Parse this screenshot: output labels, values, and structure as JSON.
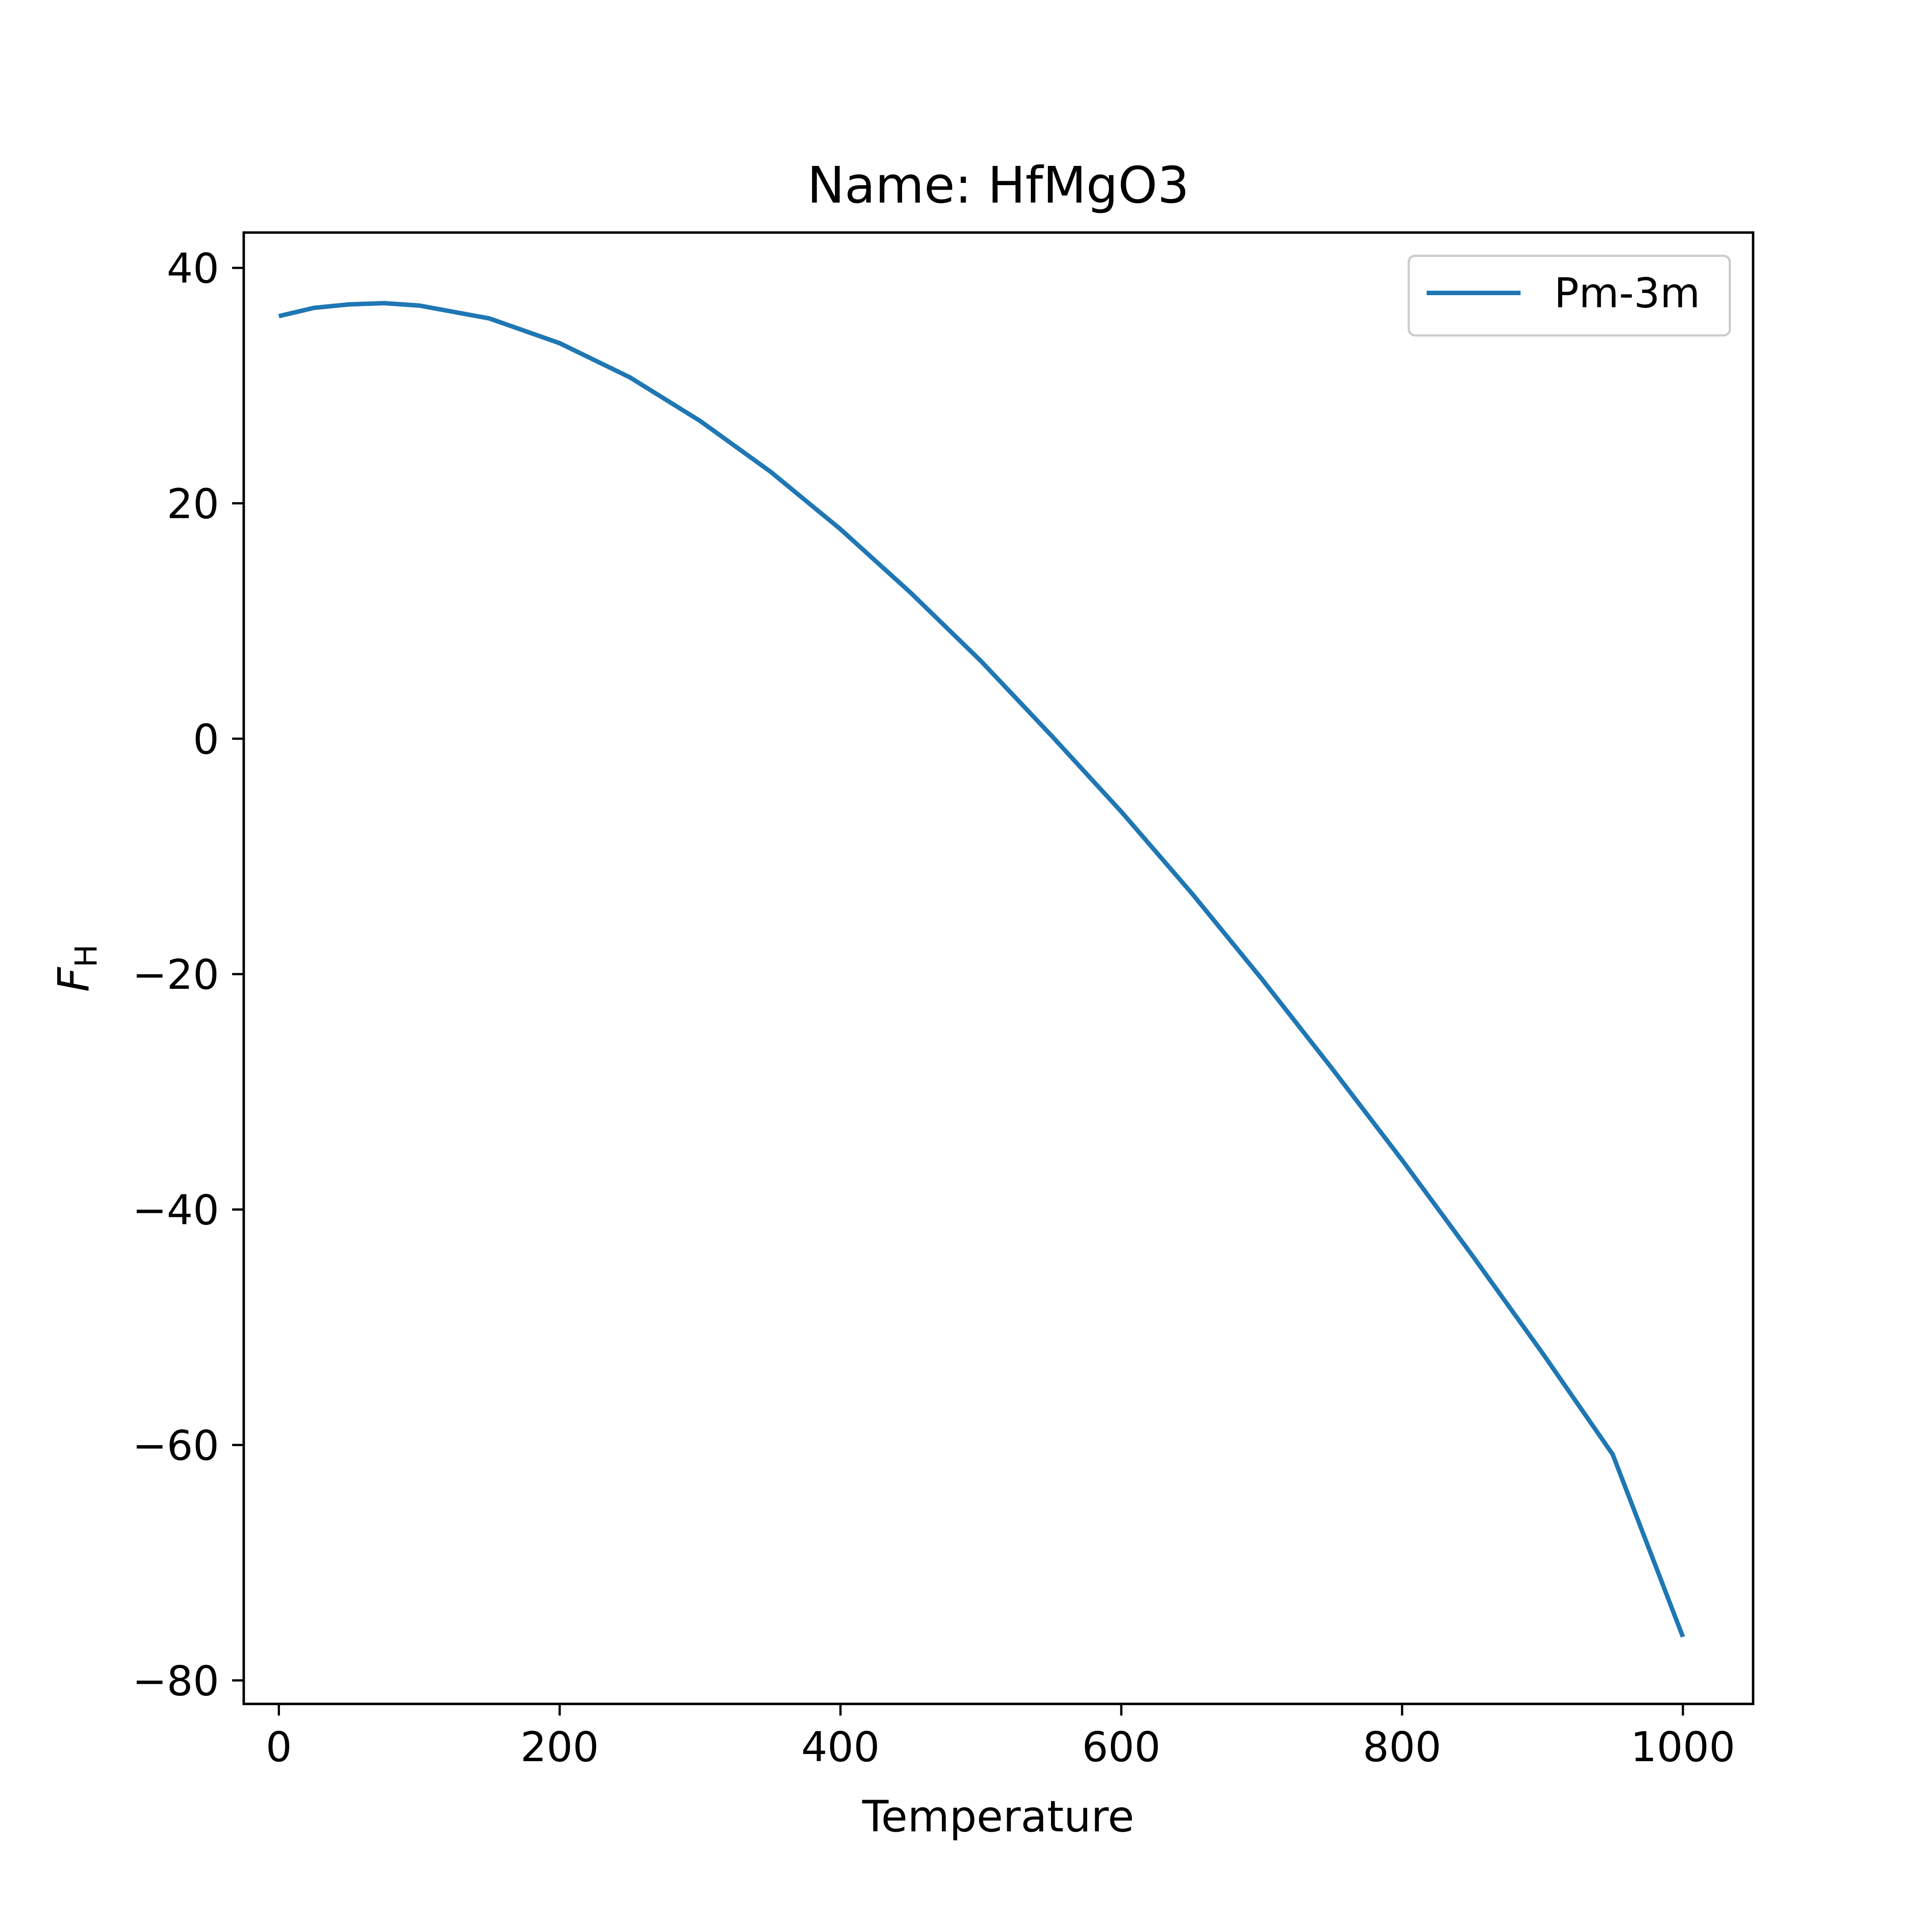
{
  "chart_data": {
    "type": "line",
    "title": "Name: HfMgO3",
    "xlabel": "Temperature",
    "ylabel": "F",
    "ylabel_subscript": "H",
    "xlim": [
      -25,
      1050
    ],
    "ylim": [
      -82,
      43
    ],
    "xticks": [
      0,
      200,
      400,
      600,
      800,
      1000
    ],
    "yticks": [
      -80,
      -60,
      -40,
      -20,
      0,
      20,
      40
    ],
    "grid": false,
    "legend_position": "top-right",
    "series": [
      {
        "name": "Pm-3m",
        "color": "#1f77b4",
        "x": [
          0,
          25,
          50,
          75,
          100,
          150,
          200,
          250,
          300,
          350,
          400,
          450,
          500,
          550,
          600,
          650,
          700,
          750,
          800,
          850,
          900,
          950,
          1000
        ],
        "y": [
          35.9,
          36.6,
          36.9,
          37.0,
          36.8,
          35.7,
          33.6,
          30.7,
          27.0,
          22.7,
          17.8,
          12.4,
          6.6,
          0.3,
          -6.2,
          -13.1,
          -20.4,
          -28.0,
          -35.8,
          -43.9,
          -52.2,
          -60.8,
          -76.3
        ]
      }
    ]
  }
}
